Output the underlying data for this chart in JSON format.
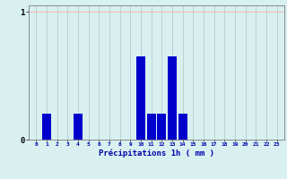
{
  "hours": [
    0,
    1,
    2,
    3,
    4,
    5,
    6,
    7,
    8,
    9,
    10,
    11,
    12,
    13,
    14,
    15,
    16,
    17,
    18,
    19,
    20,
    21,
    22,
    23
  ],
  "values": [
    0,
    0.2,
    0,
    0,
    0.2,
    0,
    0,
    0,
    0,
    0,
    0.65,
    0.2,
    0.2,
    0.65,
    0.2,
    0,
    0,
    0,
    0,
    0,
    0,
    0,
    0,
    0
  ],
  "bar_color": "#0000cc",
  "background_color": "#d8f0f0",
  "xlabel": "Précipitations 1h ( mm )",
  "ylim": [
    0,
    1.05
  ],
  "yticks": [
    0,
    1
  ],
  "ytick_labels": [
    "0",
    "1"
  ],
  "xlabel_color": "#0000aa",
  "grid_color_h": "#ffaaaa",
  "grid_color_v": "#b8cece",
  "tick_label_color": "#0000aa",
  "spine_color": "#888888"
}
